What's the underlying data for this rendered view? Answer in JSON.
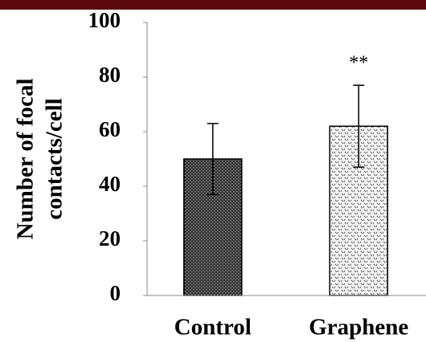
{
  "chart_data": {
    "type": "bar",
    "y_label_lines": [
      "Number of focal",
      "contacts/cell"
    ],
    "categories": [
      "Control",
      "Graphene"
    ],
    "values": [
      50,
      62
    ],
    "errors": [
      13,
      15
    ],
    "annotation": "**",
    "annotation_category": 1,
    "ylim": [
      0,
      100
    ],
    "yticks": [
      0,
      20,
      40,
      60,
      80,
      100
    ],
    "grid": false
  }
}
